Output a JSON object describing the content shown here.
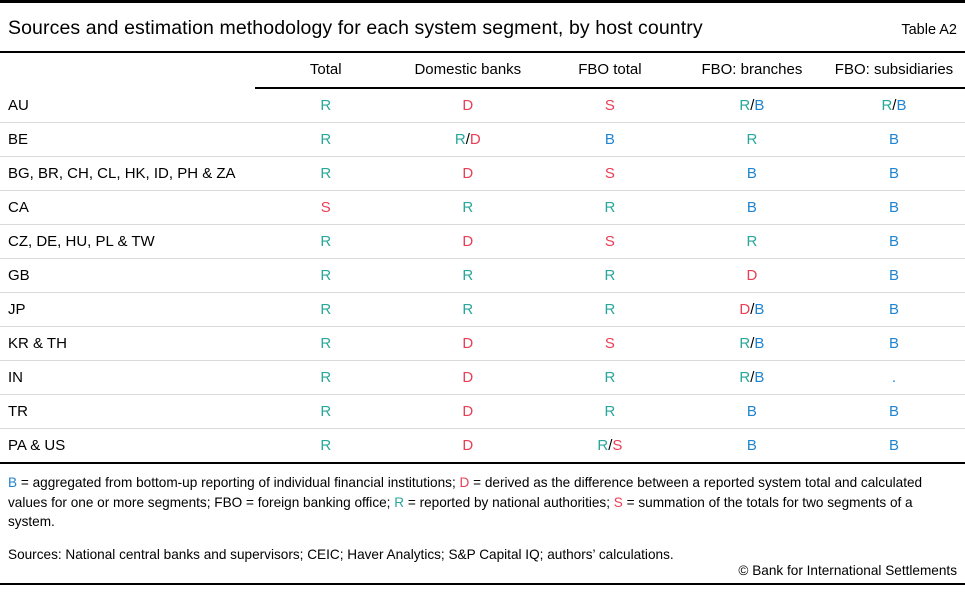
{
  "header": {
    "title": "Sources and estimation methodology for each system segment, by host country",
    "table_label": "Table A2"
  },
  "legend_colors": {
    "R": "#29a79b",
    "D": "#e93e56",
    "S": "#e93e56",
    "B": "#2084d1",
    ".": "#2084d1",
    "/": "#000000"
  },
  "table": {
    "columns": [
      "Total",
      "Domestic banks",
      "FBO total",
      "FBO: branches",
      "FBO: subsidiaries"
    ],
    "rows": [
      {
        "label": "AU",
        "cells": [
          "R",
          "D",
          "S",
          "R/B",
          "R/B"
        ]
      },
      {
        "label": "BE",
        "cells": [
          "R",
          "R/D",
          "B",
          "R",
          "B"
        ]
      },
      {
        "label": "BG, BR, CH, CL, HK, ID, PH & ZA",
        "cells": [
          "R",
          "D",
          "S",
          "B",
          "B"
        ]
      },
      {
        "label": "CA",
        "cells": [
          "S",
          "R",
          "R",
          "B",
          "B"
        ]
      },
      {
        "label": "CZ, DE, HU, PL & TW",
        "cells": [
          "R",
          "D",
          "S",
          "R",
          "B"
        ]
      },
      {
        "label": "GB",
        "cells": [
          "R",
          "R",
          "R",
          "D",
          "B"
        ]
      },
      {
        "label": "JP",
        "cells": [
          "R",
          "R",
          "R",
          "D/B",
          "B"
        ]
      },
      {
        "label": "KR & TH",
        "cells": [
          "R",
          "D",
          "S",
          "R/B",
          "B"
        ]
      },
      {
        "label": "IN",
        "cells": [
          "R",
          "D",
          "R",
          "R/B",
          "."
        ]
      },
      {
        "label": "TR",
        "cells": [
          "R",
          "D",
          "R",
          "B",
          "B"
        ]
      },
      {
        "label": "PA & US",
        "cells": [
          "R",
          "D",
          "R/S",
          "B",
          "B"
        ]
      }
    ]
  },
  "footnote": {
    "segments": [
      {
        "text": "B",
        "color": "B"
      },
      {
        "text": " = aggregated from bottom-up reporting of individual financial institutions; ",
        "color": ""
      },
      {
        "text": "D",
        "color": "D"
      },
      {
        "text": " = derived as the difference between a reported system total and calculated values for one or more segments; FBO = foreign banking office; ",
        "color": ""
      },
      {
        "text": "R",
        "color": "R"
      },
      {
        "text": " = reported by national authorities; ",
        "color": ""
      },
      {
        "text": "S",
        "color": "S"
      },
      {
        "text": " = summation of the totals for two segments of a system.",
        "color": ""
      }
    ]
  },
  "footer": {
    "sources": "Sources: National central banks and supervisors; CEIC; Haver Analytics; S&P Capital IQ; authors’ calculations.",
    "copyright": "© Bank for International Settlements"
  }
}
